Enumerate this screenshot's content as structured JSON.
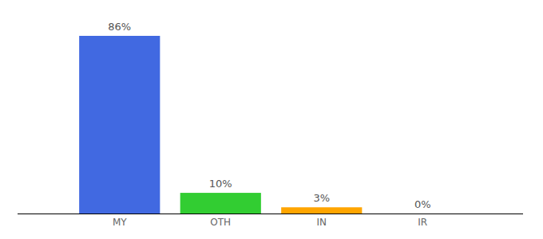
{
  "chart_data": {
    "type": "bar",
    "categories": [
      "MY",
      "OTH",
      "IN",
      "IR"
    ],
    "values": [
      86,
      10,
      3,
      0
    ],
    "value_labels": [
      "86%",
      "10%",
      "3%",
      "0%"
    ],
    "colors": [
      "#4169e1",
      "#32cd32",
      "#ffa500",
      "#dc143c"
    ],
    "data_labels": true,
    "tick_labels": "x"
  }
}
